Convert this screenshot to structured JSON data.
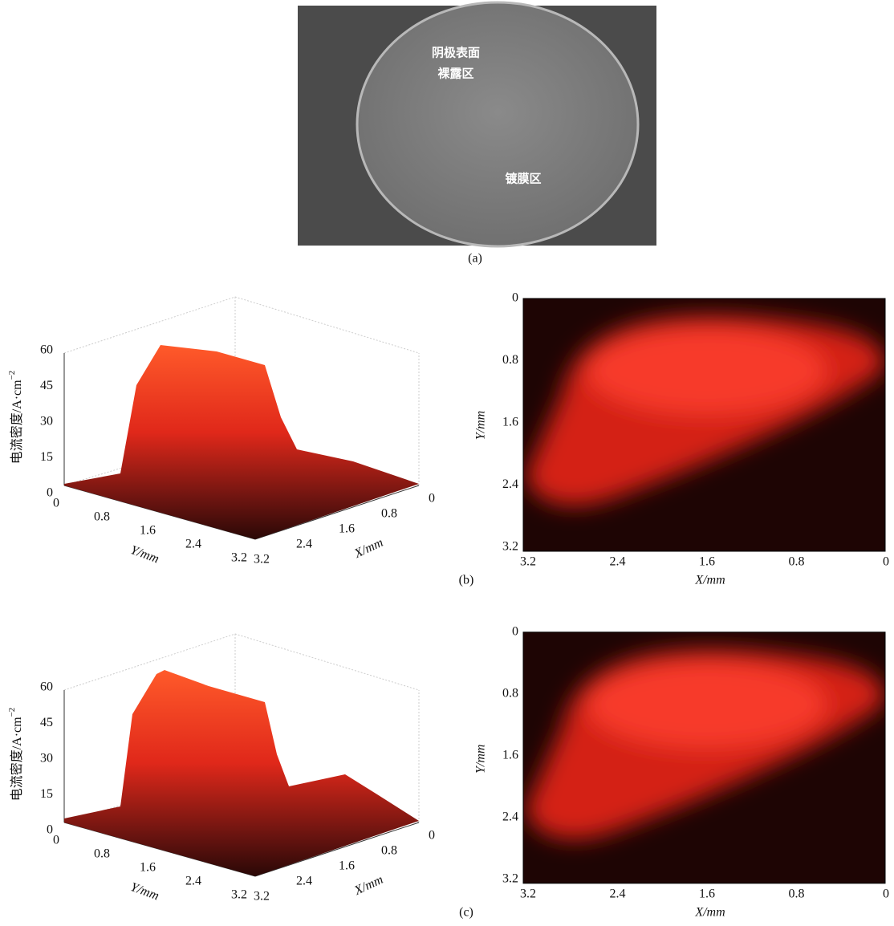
{
  "panel_a": {
    "label": "(a)",
    "annotations": [
      "阴极表面",
      "裸露区",
      "镀膜区"
    ]
  },
  "panels": [
    {
      "label": "(b)",
      "surface": {
        "z_label": "电流密度/A·cm",
        "z_label_exp": "−2",
        "z_ticks": [
          0,
          15,
          30,
          45,
          60
        ],
        "y_label": "Y/mm",
        "y_ticks": [
          0,
          0.8,
          1.6,
          2.4,
          3.2
        ],
        "x_label": "X/mm",
        "x_ticks": [
          3.2,
          2.4,
          1.6,
          0.8,
          0
        ]
      },
      "map": {
        "y_label": "Y/mm",
        "y_ticks": [
          0,
          0.8,
          1.6,
          2.4,
          3.2
        ],
        "x_label": "X/mm",
        "x_ticks": [
          3.2,
          2.4,
          1.6,
          0.8,
          0
        ]
      }
    },
    {
      "label": "(c)",
      "surface": {
        "z_label": "电流密度/A·cm",
        "z_label_exp": "−2",
        "z_ticks": [
          0,
          15,
          30,
          45,
          60
        ],
        "y_label": "Y/mm",
        "y_ticks": [
          0,
          0.8,
          1.6,
          2.4,
          3.2
        ],
        "x_label": "X/mm",
        "x_ticks": [
          3.2,
          2.4,
          1.6,
          0.8,
          0
        ]
      },
      "map": {
        "y_label": "Y/mm",
        "y_ticks": [
          0,
          0.8,
          1.6,
          2.4,
          3.2
        ],
        "x_label": "X/mm",
        "x_ticks": [
          3.2,
          2.4,
          1.6,
          0.8,
          0
        ]
      }
    }
  ]
}
